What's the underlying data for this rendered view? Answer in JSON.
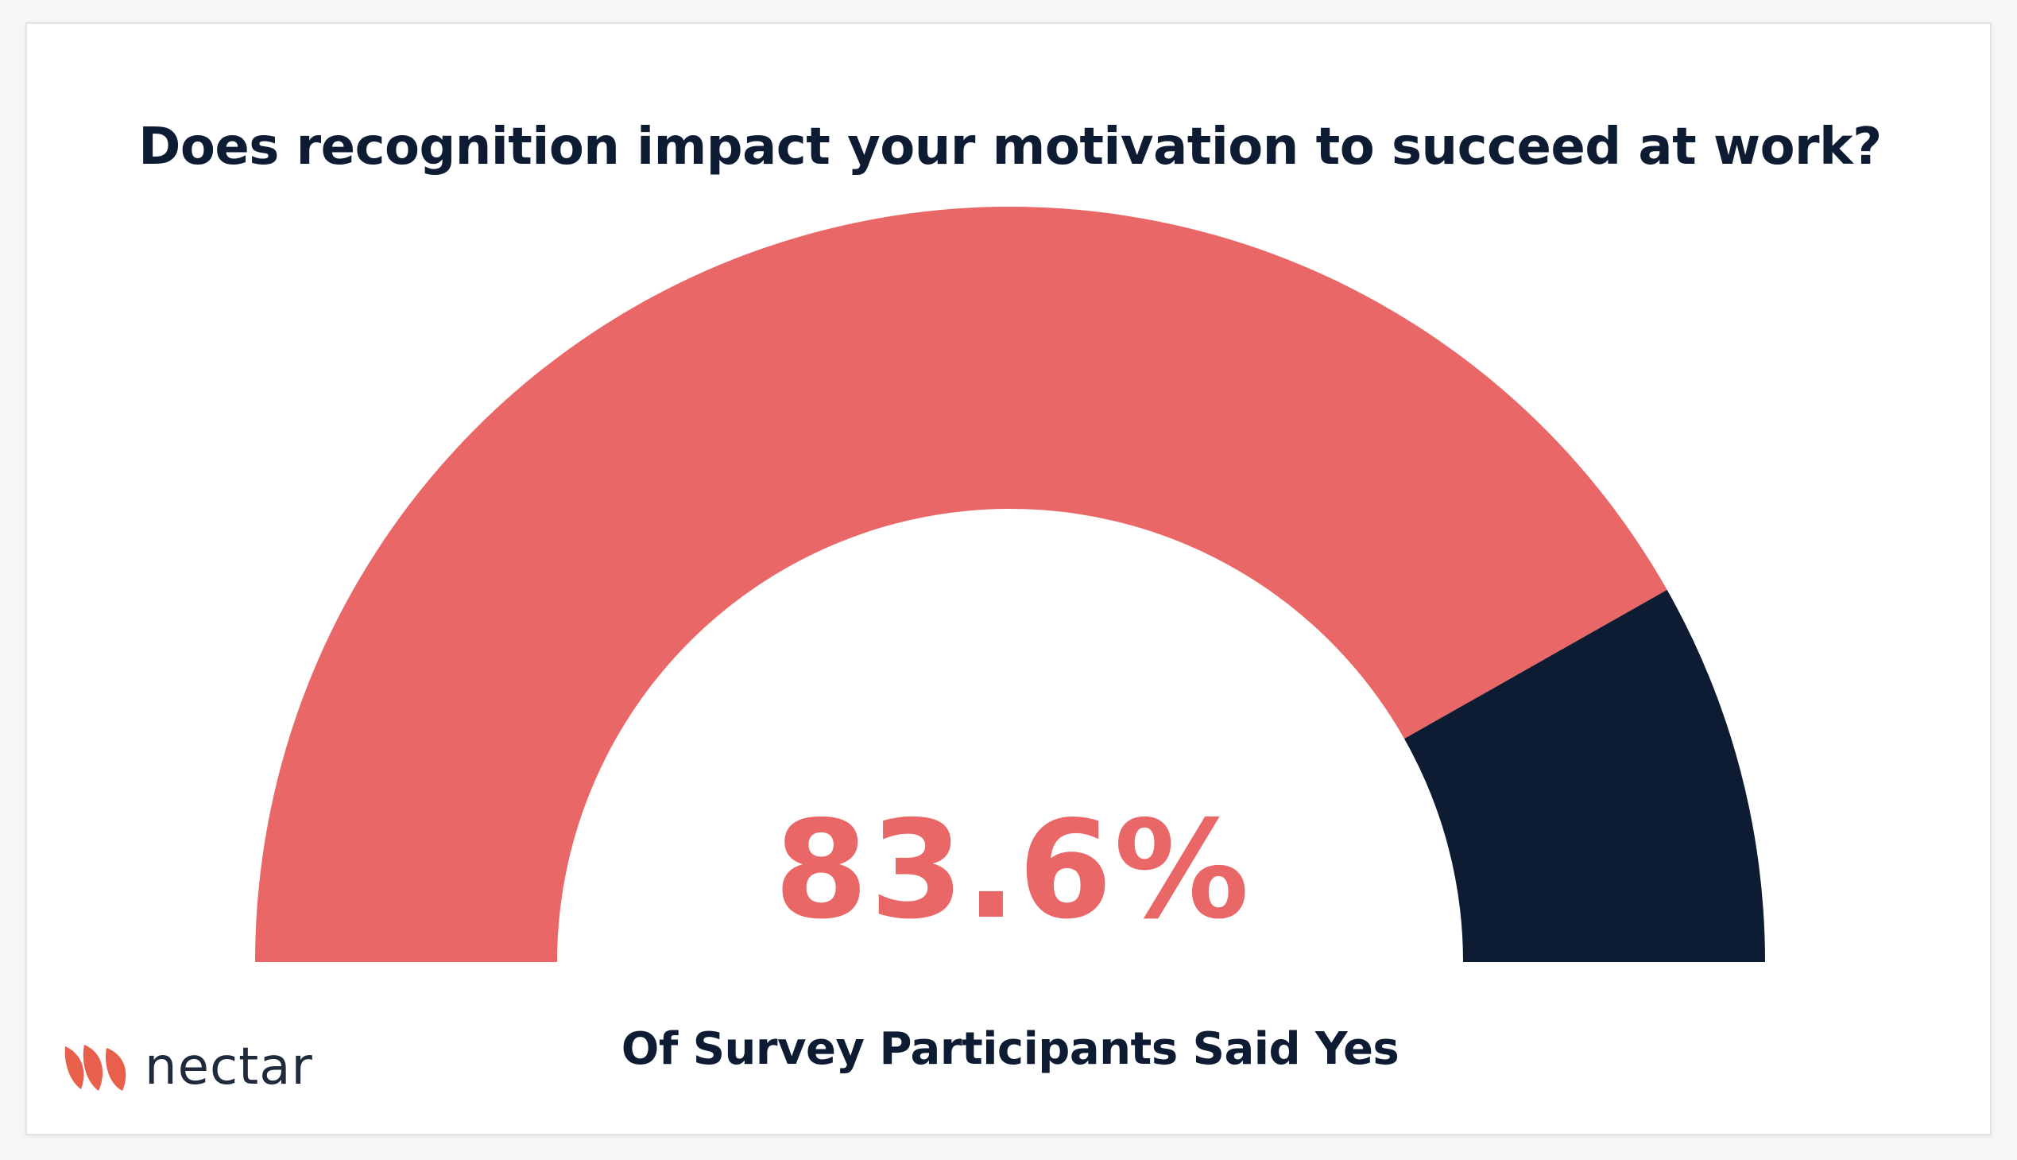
{
  "chart_data": {
    "type": "gauge",
    "title": "Does recognition impact your motivation to succeed at work?",
    "value_label": "83.6%",
    "caption": "Of Survey Participants Said Yes",
    "series": [
      {
        "value": 83.6,
        "color": "#ea6767"
      },
      {
        "value": 16.4,
        "color": "#0d1b33"
      }
    ],
    "range": [
      0,
      100
    ]
  },
  "brand": {
    "wordmark": "nectar",
    "logo_icon": "nectar-petals-icon",
    "accent": "#e8604c"
  },
  "colors": {
    "text": "#0d1b33",
    "accent": "#ea6767"
  }
}
